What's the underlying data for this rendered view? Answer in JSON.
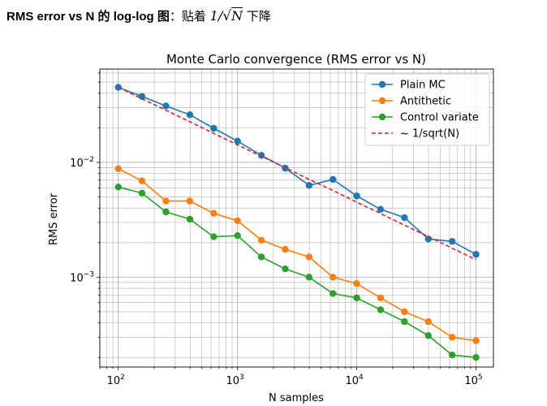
{
  "page": {
    "heading_bold": "RMS error vs N 的 log-log 图",
    "heading_colon": "：贴着 ",
    "heading_one": "1/",
    "heading_sqrt": "√",
    "heading_N": "N",
    "heading_tail": " 下降"
  },
  "chart_data": {
    "type": "line",
    "title": "Monte Carlo convergence (RMS error vs N)",
    "xlabel": "N samples",
    "ylabel": "RMS error",
    "xscale": "log",
    "yscale": "log",
    "xlim": [
      70,
      140000
    ],
    "ylim": [
      0.000165,
      0.065
    ],
    "grid": true,
    "grid_minor": true,
    "legend_position": "top-right",
    "x_ticks": [
      {
        "value": 100,
        "base": "10",
        "exp": "2"
      },
      {
        "value": 1000,
        "base": "10",
        "exp": "3"
      },
      {
        "value": 10000,
        "base": "10",
        "exp": "4"
      },
      {
        "value": 100000,
        "base": "10",
        "exp": "5"
      }
    ],
    "y_ticks": [
      {
        "value": 0.001,
        "base": "10",
        "exp": "−3"
      },
      {
        "value": 0.01,
        "base": "10",
        "exp": "−2"
      }
    ],
    "x": [
      100,
      158,
      251,
      398,
      631,
      1000,
      1585,
      2512,
      3981,
      6310,
      10000,
      15849,
      25119,
      39811,
      63096,
      100000
    ],
    "series": [
      {
        "name": "Plain MC",
        "color": "#1f77b4",
        "style": "solid",
        "marker": true,
        "values": [
          0.045,
          0.0375,
          0.031,
          0.026,
          0.0198,
          0.0153,
          0.0115,
          0.0089,
          0.0063,
          0.0071,
          0.0051,
          0.0039,
          0.0033,
          0.00215,
          0.00205,
          0.00158
        ]
      },
      {
        "name": "Antithetic",
        "color": "#ff7f0e",
        "style": "solid",
        "marker": true,
        "values": [
          0.0088,
          0.0069,
          0.0046,
          0.0046,
          0.0036,
          0.0031,
          0.0021,
          0.00175,
          0.0015,
          0.001,
          0.00088,
          0.00066,
          0.0005,
          0.00041,
          0.0003,
          0.00028
        ]
      },
      {
        "name": "Control variate",
        "color": "#2ca02c",
        "style": "solid",
        "marker": true,
        "values": [
          0.0061,
          0.0054,
          0.0037,
          0.0032,
          0.00225,
          0.0023,
          0.0015,
          0.00118,
          0.001,
          0.00072,
          0.00066,
          0.00052,
          0.00041,
          0.00031,
          0.00021,
          0.0002
        ]
      },
      {
        "name": "~ 1/sqrt(N)",
        "color": "#d62728",
        "style": "dashed",
        "marker": false,
        "values": [
          0.045,
          0.0358,
          0.0284,
          0.0226,
          0.0179,
          0.0142,
          0.0113,
          0.009,
          0.0071,
          0.0057,
          0.0045,
          0.00358,
          0.00284,
          0.00226,
          0.00179,
          0.00142
        ]
      }
    ]
  }
}
